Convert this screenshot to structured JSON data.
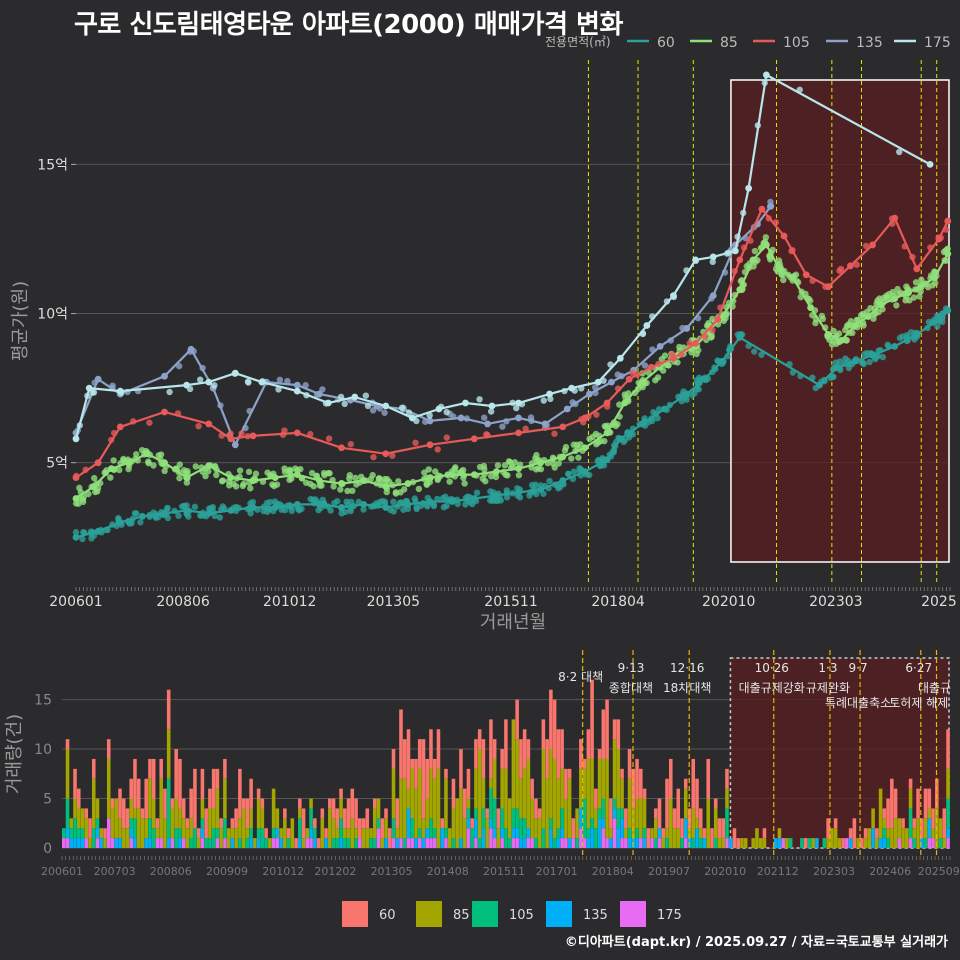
{
  "page": {
    "title": "구로 신도림태영타운 아파트(2000) 매매가격 변화",
    "footer": "©디아파트(dapt.kr) / 2025.09.27 / 자료=국토교통부 실거래가"
  },
  "colors": {
    "s60": "#2aa198",
    "s85": "#8fe07a",
    "s105": "#e85a5a",
    "s135": "#8da2c8",
    "s175": "#b8e6ea",
    "v60": "#f8766d",
    "v85": "#a3a500",
    "v105": "#00bf7d",
    "v135": "#00b0f6",
    "v175": "#e76bf3",
    "policy_line": "#e6e600",
    "highlight": "#5a1f22",
    "grid": "#555555",
    "text": "#dddddd"
  },
  "chart_data": [
    {
      "type": "line",
      "title": "구로 신도림태영타운 아파트(2000) 매매가격 변화",
      "xlabel": "거래년월",
      "ylabel": "평균가(원)",
      "legend_title": "전용면적(㎡)",
      "x_range": [
        2006.0,
        2025.75
      ],
      "ylim": [
        1.0,
        18.5
      ],
      "y_ticks": [
        5,
        10,
        15
      ],
      "y_tick_labels": [
        "5억",
        "10억",
        "15억"
      ],
      "x_ticks": [
        2006.0,
        2008.42,
        2010.83,
        2013.17,
        2015.83,
        2018.25,
        2020.75,
        2023.17,
        2025.5
      ],
      "x_tick_labels": [
        "200601",
        "200806",
        "201012",
        "201305",
        "201511",
        "201804",
        "202010",
        "202303",
        "2025"
      ],
      "policy_lines": [
        2017.58,
        2018.7,
        2019.95,
        2021.83,
        2023.08,
        2023.75,
        2025.1,
        2025.45
      ],
      "highlight_range": [
        2020.8,
        2025.75
      ],
      "series": [
        {
          "name": "60",
          "x": [
            2006.0,
            2006.5,
            2007.0,
            2007.5,
            2008.0,
            2008.5,
            2009.0,
            2009.5,
            2010.0,
            2010.5,
            2011.0,
            2011.5,
            2012.0,
            2012.5,
            2013.0,
            2013.5,
            2014.0,
            2014.5,
            2015.0,
            2015.5,
            2016.0,
            2016.5,
            2017.0,
            2017.5,
            2018.0,
            2018.3,
            2018.8,
            2019.3,
            2019.8,
            2020.2,
            2020.6,
            2021.0,
            2022.8,
            2023.2,
            2023.6,
            2024.0,
            2024.5,
            2025.0,
            2025.5,
            2025.7
          ],
          "values": [
            2.5,
            2.7,
            3.0,
            3.2,
            3.3,
            3.4,
            3.3,
            3.4,
            3.5,
            3.5,
            3.6,
            3.6,
            3.5,
            3.6,
            3.5,
            3.6,
            3.7,
            3.7,
            3.8,
            3.9,
            4.0,
            4.1,
            4.4,
            4.7,
            5.1,
            5.8,
            6.3,
            6.8,
            7.3,
            7.8,
            8.4,
            9.2,
            7.6,
            8.2,
            8.4,
            8.6,
            8.9,
            9.3,
            9.8,
            10.1
          ]
        },
        {
          "name": "85",
          "x": [
            2006.0,
            2006.4,
            2006.8,
            2007.2,
            2007.6,
            2008.0,
            2008.5,
            2009.0,
            2009.5,
            2010.0,
            2010.5,
            2011.0,
            2011.5,
            2012.0,
            2012.5,
            2013.0,
            2013.5,
            2014.0,
            2014.5,
            2015.0,
            2015.5,
            2016.0,
            2016.5,
            2017.0,
            2017.5,
            2018.0,
            2018.4,
            2018.8,
            2019.2,
            2019.6,
            2020.0,
            2020.3,
            2020.6,
            2021.0,
            2021.3,
            2021.6,
            2021.9,
            2022.2,
            2022.6,
            2023.0,
            2023.3,
            2023.6,
            2023.9,
            2024.2,
            2024.5,
            2024.8,
            2025.1,
            2025.4,
            2025.7
          ],
          "values": [
            3.8,
            4.2,
            4.8,
            5.0,
            5.3,
            5.0,
            4.5,
            4.9,
            4.5,
            4.4,
            4.5,
            4.6,
            4.4,
            4.3,
            4.4,
            4.2,
            4.3,
            4.5,
            4.6,
            4.6,
            4.7,
            4.8,
            5.0,
            5.2,
            5.5,
            6.0,
            7.0,
            7.7,
            8.2,
            8.6,
            8.9,
            9.4,
            9.9,
            10.8,
            11.8,
            12.3,
            11.5,
            11.2,
            10.2,
            9.3,
            9.1,
            9.6,
            9.9,
            10.3,
            10.5,
            10.7,
            10.9,
            11.2,
            12.0
          ]
        },
        {
          "name": "105",
          "x": [
            2006.0,
            2006.5,
            2007.0,
            2008.0,
            2009.0,
            2009.5,
            2010.0,
            2011.0,
            2012.0,
            2013.0,
            2014.0,
            2015.0,
            2016.0,
            2017.0,
            2017.5,
            2018.0,
            2018.5,
            2019.0,
            2019.5,
            2020.0,
            2020.5,
            2021.0,
            2021.5,
            2022.0,
            2022.5,
            2023.0,
            2023.5,
            2024.0,
            2024.5,
            2025.0,
            2025.5,
            2025.7
          ],
          "values": [
            4.5,
            5.0,
            6.2,
            6.7,
            6.3,
            5.8,
            5.9,
            6.0,
            5.5,
            5.3,
            5.6,
            5.8,
            6.0,
            6.2,
            6.5,
            7.0,
            7.8,
            8.2,
            8.5,
            9.0,
            9.8,
            11.8,
            13.5,
            12.6,
            11.3,
            10.9,
            11.6,
            12.3,
            13.2,
            11.5,
            12.5,
            13.1
          ]
        },
        {
          "name": "135",
          "x": [
            2006.0,
            2006.5,
            2007.0,
            2008.0,
            2008.6,
            2009.1,
            2009.6,
            2010.3,
            2011.0,
            2011.5,
            2012.2,
            2012.8,
            2013.4,
            2014.0,
            2014.7,
            2015.3,
            2016.0,
            2016.6,
            2017.1,
            2017.6,
            2018.1,
            2018.6,
            2019.2,
            2019.8,
            2020.4,
            2020.9,
            2021.4,
            2021.7
          ],
          "values": [
            6.0,
            7.8,
            7.3,
            7.9,
            8.8,
            7.5,
            5.6,
            7.7,
            7.6,
            7.3,
            7.1,
            6.9,
            6.8,
            6.4,
            6.5,
            6.3,
            6.5,
            6.3,
            6.8,
            7.3,
            7.7,
            8.1,
            8.9,
            9.5,
            10.6,
            12.3,
            13.0,
            13.6
          ]
        },
        {
          "name": "175",
          "x": [
            2006.0,
            2006.3,
            2007.0,
            2008.5,
            2009.0,
            2009.6,
            2010.2,
            2011.0,
            2011.7,
            2012.3,
            2013.0,
            2013.6,
            2014.2,
            2014.8,
            2015.4,
            2016.0,
            2016.7,
            2017.2,
            2017.8,
            2018.3,
            2018.9,
            2019.5,
            2020.0,
            2020.4,
            2020.9,
            2021.2,
            2021.6,
            2025.3
          ],
          "values": [
            5.8,
            7.5,
            7.4,
            7.6,
            7.7,
            8.0,
            7.7,
            7.4,
            7.0,
            7.2,
            6.9,
            6.5,
            6.8,
            7.0,
            6.9,
            7.0,
            7.3,
            7.5,
            7.7,
            8.5,
            9.6,
            10.6,
            11.8,
            11.9,
            12.1,
            14.2,
            18.0,
            15.0
          ]
        }
      ]
    },
    {
      "type": "bar",
      "ylabel": "거래량(건)",
      "x_range": [
        2006.0,
        2025.75
      ],
      "ylim": [
        0,
        19
      ],
      "y_ticks": [
        0,
        5,
        10,
        15
      ],
      "y_tick_labels": [
        "0",
        "5",
        "10",
        "15"
      ],
      "x_ticks": [
        2006.0,
        2007.17,
        2008.42,
        2009.67,
        2010.92,
        2012.08,
        2013.33,
        2014.58,
        2015.83,
        2017.0,
        2018.25,
        2019.5,
        2020.75,
        2021.92,
        2023.17,
        2024.42,
        2025.5
      ],
      "x_tick_labels": [
        "200601",
        "200703",
        "200806",
        "200909",
        "201012",
        "201202",
        "201305",
        "201408",
        "201511",
        "201701",
        "201804",
        "201907",
        "202010",
        "202112",
        "202303",
        "202406",
        "202509"
      ],
      "legend": [
        "60",
        "85",
        "105",
        "135",
        "175"
      ],
      "policy_lines": [
        2017.58,
        2018.7,
        2019.95,
        2021.83,
        2023.08,
        2023.75,
        2025.1,
        2025.45
      ],
      "highlight_range": [
        2020.8,
        2025.75
      ],
      "annotations": [
        {
          "x": 2017.58,
          "date": "",
          "label": "8·2 대책"
        },
        {
          "x": 2018.7,
          "date": "9·13",
          "label": "종합대책"
        },
        {
          "x": 2019.95,
          "date": "12·16",
          "label": "18차대책"
        },
        {
          "x": 2021.83,
          "date": "10·26",
          "label": "대출규제강화"
        },
        {
          "x": 2023.08,
          "date": "1·3",
          "label": "규제완화"
        },
        {
          "x": 2023.75,
          "date": "9·7",
          "label": "특례대출축소"
        },
        {
          "x": 2025.1,
          "date": "6·27",
          "label": "토허제 해제"
        },
        {
          "x": 2025.45,
          "date": "",
          "label": "대출규"
        }
      ]
    }
  ]
}
